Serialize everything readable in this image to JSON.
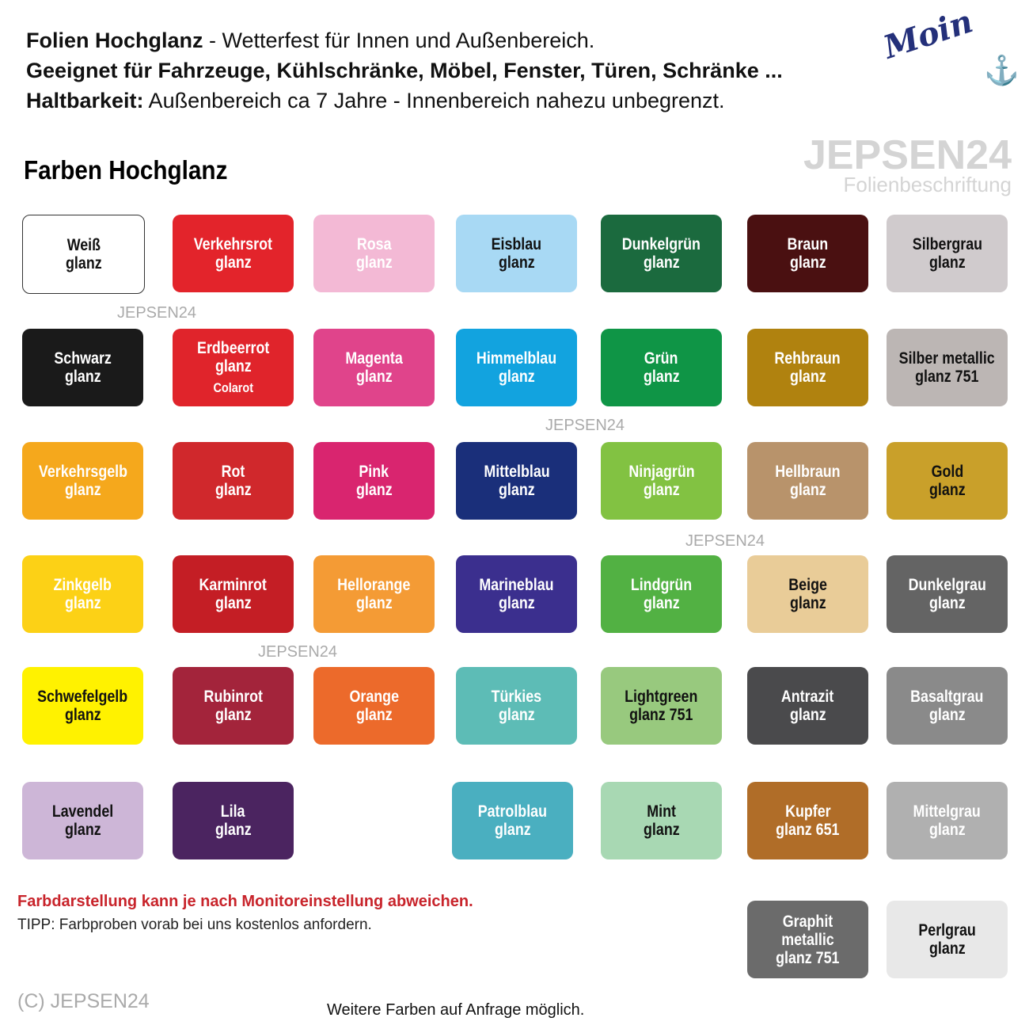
{
  "header": {
    "line1_bold": "Folien Hochglanz",
    "line1_rest": " - Wetterfest für Innen und Außenbereich.",
    "line2": "Geeignet für Fahrzeuge, Kühlschränke, Möbel, Fenster, Türen, Schränke ...",
    "line3_bold": "Haltbarkeit:",
    "line3_rest": " Außenbereich ca 7 Jahre - Innenbereich nahezu unbegrenzt."
  },
  "logo": {
    "text": "Moin",
    "icon": "anchor-icon"
  },
  "brand": {
    "name": "JEPSEN24",
    "tagline": "Folienbeschriftung"
  },
  "title": "Farben Hochglanz",
  "swatches": [
    {
      "l1": "Weiß",
      "l2": "glanz",
      "bg": "#ffffff",
      "fg": "#111111",
      "c": 0,
      "r": 0
    },
    {
      "l1": "Verkehrsrot",
      "l2": "glanz",
      "bg": "#e3242b",
      "fg": "#ffffff",
      "c": 1,
      "r": 0
    },
    {
      "l1": "Rosa",
      "l2": "glanz",
      "bg": "#f3b9d5",
      "fg": "#ffffff",
      "c": 2,
      "r": 0
    },
    {
      "l1": "Eisblau",
      "l2": "glanz",
      "bg": "#a8d9f4",
      "fg": "#111111",
      "c": 3,
      "r": 0
    },
    {
      "l1": "Dunkelgrün",
      "l2": "glanz",
      "bg": "#1b6a3e",
      "fg": "#ffffff",
      "c": 4,
      "r": 0
    },
    {
      "l1": "Braun",
      "l2": "glanz",
      "bg": "#4a1011",
      "fg": "#ffffff",
      "c": 5,
      "r": 0
    },
    {
      "l1": "Silbergrau",
      "l2": "glanz",
      "bg": "#d0cbcd",
      "fg": "#111111",
      "c": 6,
      "r": 0
    },
    {
      "l1": "Schwarz",
      "l2": "glanz",
      "bg": "#1a1a1a",
      "fg": "#ffffff",
      "c": 0,
      "r": 1
    },
    {
      "l1": "Erdbeerrot",
      "l2": "glanz",
      "l3": "Colarot",
      "bg": "#e0242b",
      "fg": "#ffffff",
      "c": 1,
      "r": 1
    },
    {
      "l1": "Magenta",
      "l2": "glanz",
      "bg": "#e0448b",
      "fg": "#ffffff",
      "c": 2,
      "r": 1
    },
    {
      "l1": "Himmelblau",
      "l2": "glanz",
      "bg": "#12a3df",
      "fg": "#ffffff",
      "c": 3,
      "r": 1
    },
    {
      "l1": "Grün",
      "l2": "glanz",
      "bg": "#0f9546",
      "fg": "#ffffff",
      "c": 4,
      "r": 1
    },
    {
      "l1": "Rehbraun",
      "l2": "glanz",
      "bg": "#b0820f",
      "fg": "#ffffff",
      "c": 5,
      "r": 1
    },
    {
      "l1": "Silber metallic",
      "l2": "glanz 751",
      "bg": "#bcb6b4",
      "fg": "#111111",
      "c": 6,
      "r": 1
    },
    {
      "l1": "Verkehrsgelb",
      "l2": "glanz",
      "bg": "#f5a81c",
      "fg": "#ffffff",
      "c": 0,
      "r": 2
    },
    {
      "l1": "Rot",
      "l2": "glanz",
      "bg": "#d0282c",
      "fg": "#ffffff",
      "c": 1,
      "r": 2
    },
    {
      "l1": "Pink",
      "l2": "glanz",
      "bg": "#d9256f",
      "fg": "#ffffff",
      "c": 2,
      "r": 2
    },
    {
      "l1": "Mittelblau",
      "l2": "glanz",
      "bg": "#1a2f7a",
      "fg": "#ffffff",
      "c": 3,
      "r": 2
    },
    {
      "l1": "Ninjagrün",
      "l2": "glanz",
      "bg": "#82c242",
      "fg": "#ffffff",
      "c": 4,
      "r": 2
    },
    {
      "l1": "Hellbraun",
      "l2": "glanz",
      "bg": "#b8936b",
      "fg": "#ffffff",
      "c": 5,
      "r": 2
    },
    {
      "l1": "Gold",
      "l2": "glanz",
      "bg": "#c9a02a",
      "fg": "#111111",
      "c": 6,
      "r": 2
    },
    {
      "l1": "Zinkgelb",
      "l2": "glanz",
      "bg": "#fcd116",
      "fg": "#ffffff",
      "c": 0,
      "r": 3
    },
    {
      "l1": "Karminrot",
      "l2": "glanz",
      "bg": "#c41e25",
      "fg": "#ffffff",
      "c": 1,
      "r": 3
    },
    {
      "l1": "Hellorange",
      "l2": "glanz",
      "bg": "#f49b35",
      "fg": "#ffffff",
      "c": 2,
      "r": 3
    },
    {
      "l1": "Marineblau",
      "l2": "glanz",
      "bg": "#3b2f8e",
      "fg": "#ffffff",
      "c": 3,
      "r": 3
    },
    {
      "l1": "Lindgrün",
      "l2": "glanz",
      "bg": "#52b143",
      "fg": "#ffffff",
      "c": 4,
      "r": 3
    },
    {
      "l1": "Beige",
      "l2": "glanz",
      "bg": "#e9cc98",
      "fg": "#111111",
      "c": 5,
      "r": 3
    },
    {
      "l1": "Dunkelgrau",
      "l2": "glanz",
      "bg": "#646464",
      "fg": "#ffffff",
      "c": 6,
      "r": 3
    },
    {
      "l1": "Schwefelgelb",
      "l2": "glanz",
      "bg": "#fff200",
      "fg": "#111111",
      "c": 0,
      "r": 4
    },
    {
      "l1": "Rubinrot",
      "l2": "glanz",
      "bg": "#a3243b",
      "fg": "#ffffff",
      "c": 1,
      "r": 4
    },
    {
      "l1": "Orange",
      "l2": "glanz",
      "bg": "#ec6a2b",
      "fg": "#ffffff",
      "c": 2,
      "r": 4
    },
    {
      "l1": "Türkies",
      "l2": "glanz",
      "bg": "#5dbcb6",
      "fg": "#ffffff",
      "c": 3,
      "r": 4
    },
    {
      "l1": "Lightgreen",
      "l2": "glanz 751",
      "bg": "#98c97e",
      "fg": "#111111",
      "c": 4,
      "r": 4
    },
    {
      "l1": "Antrazit",
      "l2": "glanz",
      "bg": "#4a4a4c",
      "fg": "#ffffff",
      "c": 5,
      "r": 4
    },
    {
      "l1": "Basaltgrau",
      "l2": "glanz",
      "bg": "#8a8a8a",
      "fg": "#ffffff",
      "c": 6,
      "r": 4
    },
    {
      "l1": "Lavendel",
      "l2": "glanz",
      "bg": "#cdb6d7",
      "fg": "#111111",
      "c": 0,
      "r": 5
    },
    {
      "l1": "Lila",
      "l2": "glanz",
      "bg": "#4b2460",
      "fg": "#ffffff",
      "c": 1,
      "r": 5
    },
    {
      "l1": "Patrolblau",
      "l2": "glanz",
      "bg": "#4aafc0",
      "fg": "#ffffff",
      "c": 3,
      "r": 5
    },
    {
      "l1": "Mint",
      "l2": "glanz",
      "bg": "#a8d8b3",
      "fg": "#111111",
      "c": 4,
      "r": 5
    },
    {
      "l1": "Kupfer",
      "l2": "glanz 651",
      "bg": "#b06d28",
      "fg": "#ffffff",
      "c": 5,
      "r": 5
    },
    {
      "l1": "Mittelgrau",
      "l2": "glanz",
      "bg": "#b0b0b0",
      "fg": "#ffffff",
      "c": 6,
      "r": 5
    },
    {
      "l1": "Graphit metallic",
      "l2": "glanz 751",
      "bg": "#6b6b6b",
      "fg": "#ffffff",
      "c": 5,
      "r": 6
    },
    {
      "l1": "Perlgrau",
      "l2": "glanz",
      "bg": "#e8e8e8",
      "fg": "#111111",
      "c": 6,
      "r": 6
    }
  ],
  "watermark": "JEPSEN24",
  "notes": {
    "warning": "Farbdarstellung kann je nach Monitoreinstellung abweichen.",
    "tip": "TIPP: Farbproben vorab bei uns kostenlos anfordern."
  },
  "copyright": "(C) JEPSEN24",
  "footer": "Weitere Farben auf Anfrage möglich."
}
